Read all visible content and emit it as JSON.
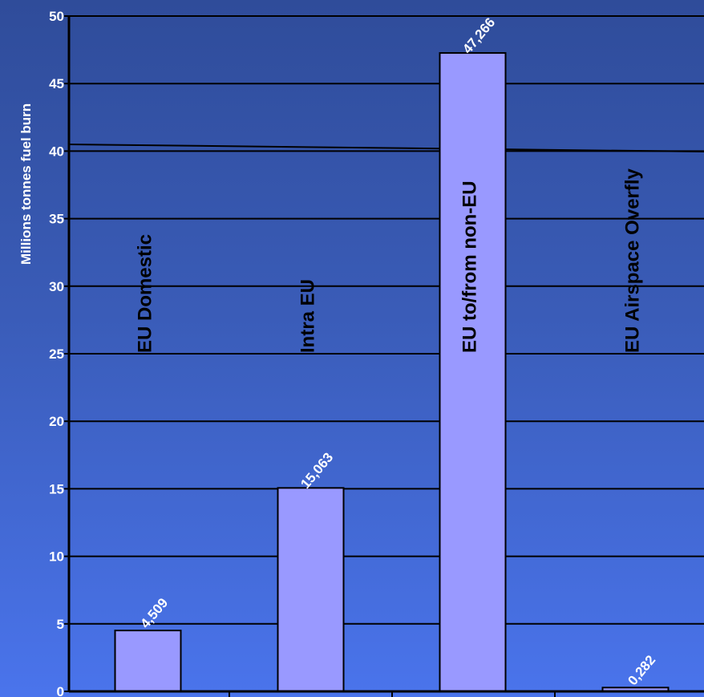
{
  "chart_data": {
    "type": "bar",
    "categories": [
      "EU Domestic",
      "Intra EU",
      "EU to/from non-EU",
      "EU Airspace Overfly"
    ],
    "values": [
      4.509,
      15.063,
      47.266,
      0.282
    ],
    "value_labels": [
      "4,509",
      "15,063",
      "47,266",
      "0,282"
    ],
    "ylabel": "Millions tonnes fuel burn",
    "ylim": [
      0,
      50
    ],
    "yticks": [
      0,
      5,
      10,
      15,
      20,
      25,
      30,
      35,
      40,
      45,
      50
    ],
    "grid": true,
    "bar_color": "#9999ff"
  }
}
